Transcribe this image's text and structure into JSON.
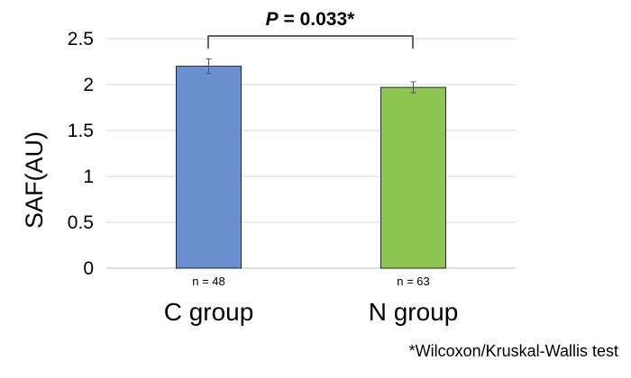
{
  "chart_data": {
    "type": "bar",
    "categories": [
      "C group",
      "N group"
    ],
    "values": [
      2.2,
      1.97
    ],
    "error": [
      0.08,
      0.06
    ],
    "sample_labels": [
      "n = 48",
      "n = 63"
    ],
    "colors": [
      "#6a8fcf",
      "#8cc552"
    ],
    "ylabel": "SAF(AU)",
    "ylim": [
      0,
      2.5
    ],
    "yticks": [
      "0",
      "0.5",
      "1",
      "1.5",
      "2",
      "2.5"
    ],
    "grid": true,
    "significance": {
      "p_prefix": "P",
      "p_value": " = 0.033*"
    }
  },
  "footnote": "*Wilcoxon/Kruskal-Wallis test"
}
